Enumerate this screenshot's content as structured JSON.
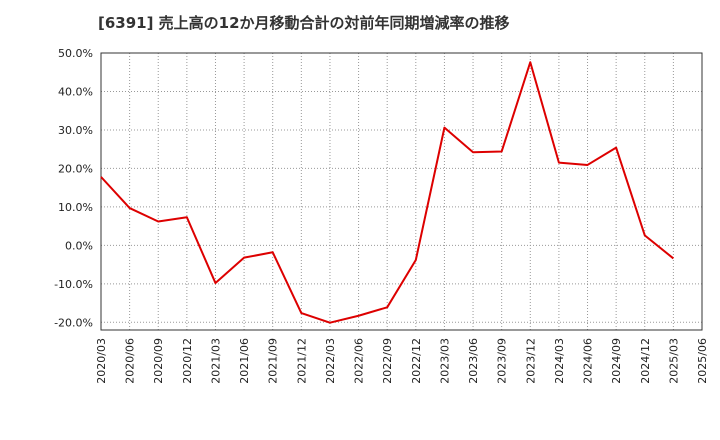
{
  "chart_data": {
    "type": "line",
    "title": "[6391]  売上高の12か月移動合計の対前年同期増減率の推移",
    "xlabel": "",
    "ylabel": "",
    "ylim": [
      -22,
      50
    ],
    "yticks": [
      50,
      40,
      30,
      20,
      10,
      0,
      -10,
      -20
    ],
    "ytick_labels": [
      "50.0%",
      "40.0%",
      "30.0%",
      "20.0%",
      "10.0%",
      "0.0%",
      "-10.0%",
      "-20.0%"
    ],
    "categories": [
      "2020/03",
      "2020/06",
      "2020/09",
      "2020/12",
      "2021/03",
      "2021/06",
      "2021/09",
      "2021/12",
      "2022/03",
      "2022/06",
      "2022/09",
      "2022/12",
      "2023/03",
      "2023/06",
      "2023/09",
      "2023/12",
      "2024/03",
      "2024/06",
      "2024/09",
      "2024/12",
      "2025/03",
      "2025/06"
    ],
    "grid": true,
    "series": [
      {
        "name": "対前年同期増減率",
        "color": "#dd0000",
        "values": [
          17.8,
          9.7,
          6.2,
          7.3,
          -9.8,
          -3.2,
          -1.8,
          -17.6,
          -20.1,
          -18.3,
          -16.1,
          -3.8,
          30.6,
          24.2,
          24.4,
          47.6,
          21.5,
          20.9,
          25.4,
          2.6,
          -3.4,
          null
        ]
      }
    ]
  }
}
